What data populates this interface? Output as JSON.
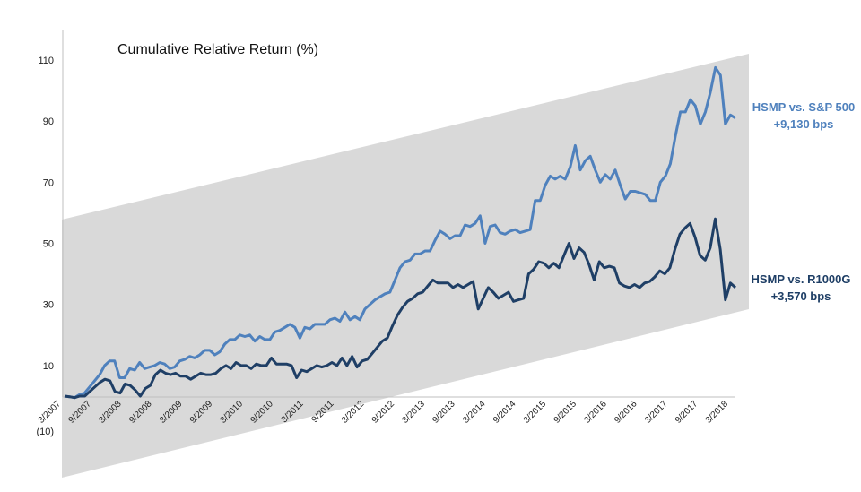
{
  "chart_data": {
    "type": "line",
    "title": "Cumulative Relative Return (%)",
    "xlabel": "",
    "ylabel": "",
    "ylim": [
      -10,
      120
    ],
    "y_ticks": [
      {
        "value": 110,
        "label": "110"
      },
      {
        "value": 90,
        "label": "90"
      },
      {
        "value": 70,
        "label": "70"
      },
      {
        "value": 50,
        "label": "50"
      },
      {
        "value": 30,
        "label": "30"
      },
      {
        "value": 10,
        "label": "10"
      },
      {
        "value": -10,
        "label": "(10)"
      }
    ],
    "x_ticks": [
      "3/2007",
      "9/2007",
      "3/2008",
      "9/2008",
      "3/2009",
      "9/2009",
      "3/2010",
      "9/2010",
      "3/2011",
      "9/2011",
      "3/2012",
      "9/2012",
      "3/2013",
      "9/2013",
      "3/2014",
      "9/2014",
      "3/2015",
      "9/2015",
      "3/2016",
      "9/2016",
      "3/2017",
      "9/2017",
      "3/2018"
    ],
    "grid": false,
    "legend": "annotations-right",
    "band_color": "#d9d9d9",
    "series": [
      {
        "name": "HSMP vs. S&P 500",
        "color": "#4f81bd",
        "values": [
          0,
          -0.2,
          -0.5,
          0.5,
          1,
          3,
          5,
          7,
          10,
          11.5,
          11.5,
          6,
          6,
          9,
          8.5,
          11,
          9,
          9.5,
          10,
          11,
          10.5,
          9,
          9.5,
          11.5,
          12,
          13,
          12.5,
          13.5,
          15,
          15,
          13.5,
          14.5,
          17,
          18.5,
          18.5,
          20,
          19.5,
          20,
          18,
          19.5,
          18.5,
          18.5,
          21,
          21.5,
          22.5,
          23.5,
          22.5,
          19,
          22.5,
          22,
          23.5,
          23.5,
          23.5,
          25,
          25.5,
          24.5,
          27.5,
          25,
          26,
          25,
          28.5,
          30,
          31.5,
          32.5,
          33.5,
          34,
          38,
          42,
          44,
          44.5,
          46.5,
          46.5,
          47.5,
          47.5,
          51,
          54,
          53,
          51.5,
          52.5,
          52.5,
          56,
          55.5,
          56.5,
          59,
          50,
          55.5,
          56,
          53.5,
          53,
          54,
          54.5,
          53.5,
          54,
          54.5,
          64,
          64,
          69,
          72,
          71,
          72,
          71,
          75,
          82,
          74,
          77,
          78.5,
          74,
          70,
          72.5,
          71,
          74,
          69,
          64.5,
          67,
          67,
          66.5,
          66,
          64,
          64,
          70,
          72,
          76,
          85,
          93,
          93,
          97,
          95,
          89,
          93,
          99.5,
          107.5,
          105,
          89,
          92,
          91
        ],
        "end_label": "HSMP vs. S&P 500",
        "end_value_label": "+9,130 bps"
      },
      {
        "name": "HSMP vs. R1000G",
        "color": "#1f3f66",
        "values": [
          0,
          -0.2,
          -0.5,
          0,
          0,
          1.5,
          3,
          4.5,
          5.5,
          5,
          1.5,
          1,
          4,
          3.5,
          2,
          0,
          2.5,
          3.5,
          7,
          8.5,
          7.5,
          7,
          7.5,
          6.5,
          6.5,
          5.5,
          6.5,
          7.5,
          7,
          7,
          7.5,
          9,
          10,
          9,
          11,
          10,
          10,
          9,
          10.5,
          10,
          10,
          12.5,
          10.5,
          10.5,
          10.5,
          10,
          6,
          8.5,
          8,
          9,
          10,
          9.5,
          10,
          11,
          10,
          12.5,
          10,
          13,
          9.5,
          11.5,
          12,
          14,
          16,
          18,
          19,
          23,
          26.5,
          29,
          31,
          32,
          33.5,
          34,
          36,
          38,
          37,
          37,
          37,
          35.5,
          36.5,
          35.5,
          36.5,
          37.5,
          28.5,
          32,
          35.5,
          34,
          32,
          33,
          34,
          31,
          31.5,
          32,
          40,
          41.5,
          44,
          43.5,
          42,
          43.5,
          42,
          46,
          50,
          45,
          48.5,
          47,
          43,
          38,
          44,
          42,
          42.5,
          42,
          37,
          36,
          35.5,
          36.5,
          35.5,
          37,
          37.5,
          39,
          41,
          40,
          42,
          48,
          53,
          55,
          56.5,
          52,
          46,
          44.5,
          48.5,
          58,
          48,
          31.5,
          37,
          35.5
        ],
        "end_label": "HSMP vs. R1000G",
        "end_value_label": "+3,570 bps"
      }
    ]
  }
}
